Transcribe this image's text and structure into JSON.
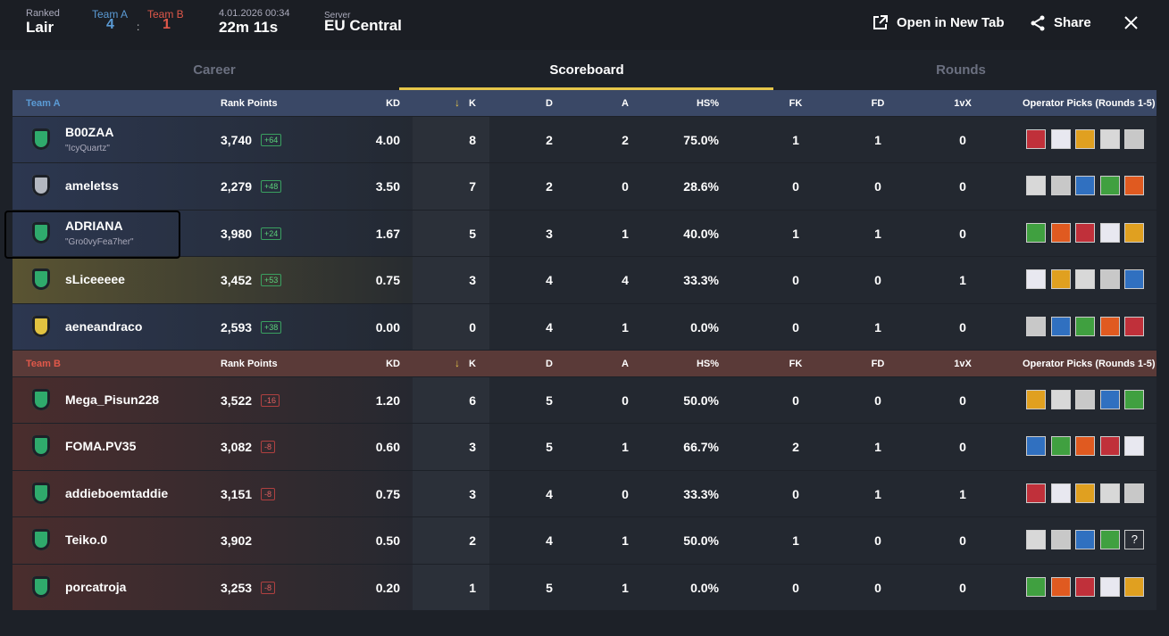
{
  "header": {
    "mode_label": "Ranked",
    "map": "Lair",
    "team_a_label": "Team A",
    "team_a_score": "4",
    "score_separator": ":",
    "team_b_label": "Team B",
    "team_b_score": "1",
    "date": "4.01.2026 00:34",
    "duration": "22m 11s",
    "server_label": "Server",
    "server": "EU Central",
    "open_new_tab": "Open in New Tab",
    "share": "Share"
  },
  "tabs": [
    "Career",
    "Scoreboard",
    "Rounds"
  ],
  "teams": [
    {
      "name": "Team A",
      "name_color": "#5b9bd5",
      "header_color": "#3a4866",
      "row_tint": "#2c3750",
      "columns": [
        "Rank Points",
        "KD",
        "K",
        "D",
        "A",
        "HS%",
        "FK",
        "FD",
        "1vX",
        "Operator Picks (Rounds 1-5)"
      ],
      "players": [
        {
          "name": "B00ZAA",
          "nickname": "\"IcyQuartz\"",
          "badge_color": "#2faa6c",
          "rank_points": "3,740",
          "delta": "+64",
          "stats": [
            "4.00",
            "8",
            "2",
            "2",
            "75.0%",
            "1",
            "1",
            "0"
          ]
        },
        {
          "name": "ameletss",
          "badge_color": "#b4b8c0",
          "rank_points": "2,279",
          "delta": "+48",
          "stats": [
            "3.50",
            "7",
            "2",
            "0",
            "28.6%",
            "0",
            "0",
            "0"
          ]
        },
        {
          "name": "ADRIANA",
          "nickname": "\"Gro0vyFea7her\"",
          "badge_color": "#2faa6c",
          "rank_points": "3,980",
          "delta": "+24",
          "stats": [
            "1.67",
            "5",
            "3",
            "1",
            "40.0%",
            "1",
            "1",
            "0"
          ]
        },
        {
          "name": "sLiceeeee",
          "badge_color": "#2faa6c",
          "row_tint": "#5a5432",
          "rank_points": "3,452",
          "delta": "+53",
          "stats": [
            "0.75",
            "3",
            "4",
            "4",
            "33.3%",
            "0",
            "0",
            "1"
          ]
        },
        {
          "name": "aeneandraco",
          "badge_color": "#e2c340",
          "rank_points": "2,593",
          "delta": "+38",
          "stats": [
            "0.00",
            "0",
            "4",
            "1",
            "0.0%",
            "0",
            "1",
            "0"
          ]
        }
      ]
    },
    {
      "name": "Team B",
      "name_color": "#e0584a",
      "header_color": "#5a3a38",
      "row_tint": "#4a2d2d",
      "columns": [
        "Rank Points",
        "KD",
        "K",
        "D",
        "A",
        "HS%",
        "FK",
        "FD",
        "1vX",
        "Operator Picks (Rounds 1-5)"
      ],
      "players": [
        {
          "name": "Mega_Pisun228",
          "badge_color": "#2faa6c",
          "rank_points": "3,522",
          "delta": "-16",
          "stats": [
            "1.20",
            "6",
            "5",
            "0",
            "50.0%",
            "0",
            "0",
            "0"
          ]
        },
        {
          "name": "FOMA.PV35",
          "badge_color": "#2faa6c",
          "rank_points": "3,082",
          "delta": "-8",
          "stats": [
            "0.60",
            "3",
            "5",
            "1",
            "66.7%",
            "2",
            "1",
            "0"
          ]
        },
        {
          "name": "addieboemtaddie",
          "badge_color": "#2faa6c",
          "rank_points": "3,151",
          "delta": "-8",
          "stats": [
            "0.75",
            "3",
            "4",
            "0",
            "33.3%",
            "0",
            "1",
            "1"
          ]
        },
        {
          "name": "Teiko.0",
          "badge_color": "#2faa6c",
          "rank_points": "3,902",
          "operator_placeholder": "?",
          "stats": [
            "0.50",
            "2",
            "4",
            "1",
            "50.0%",
            "1",
            "0",
            "0"
          ]
        },
        {
          "name": "porcatroja",
          "badge_color": "#2faa6c",
          "rank_points": "3,253",
          "delta": "-8",
          "stats": [
            "0.20",
            "1",
            "5",
            "1",
            "0.0%",
            "0",
            "0",
            "0"
          ]
        }
      ]
    }
  ]
}
